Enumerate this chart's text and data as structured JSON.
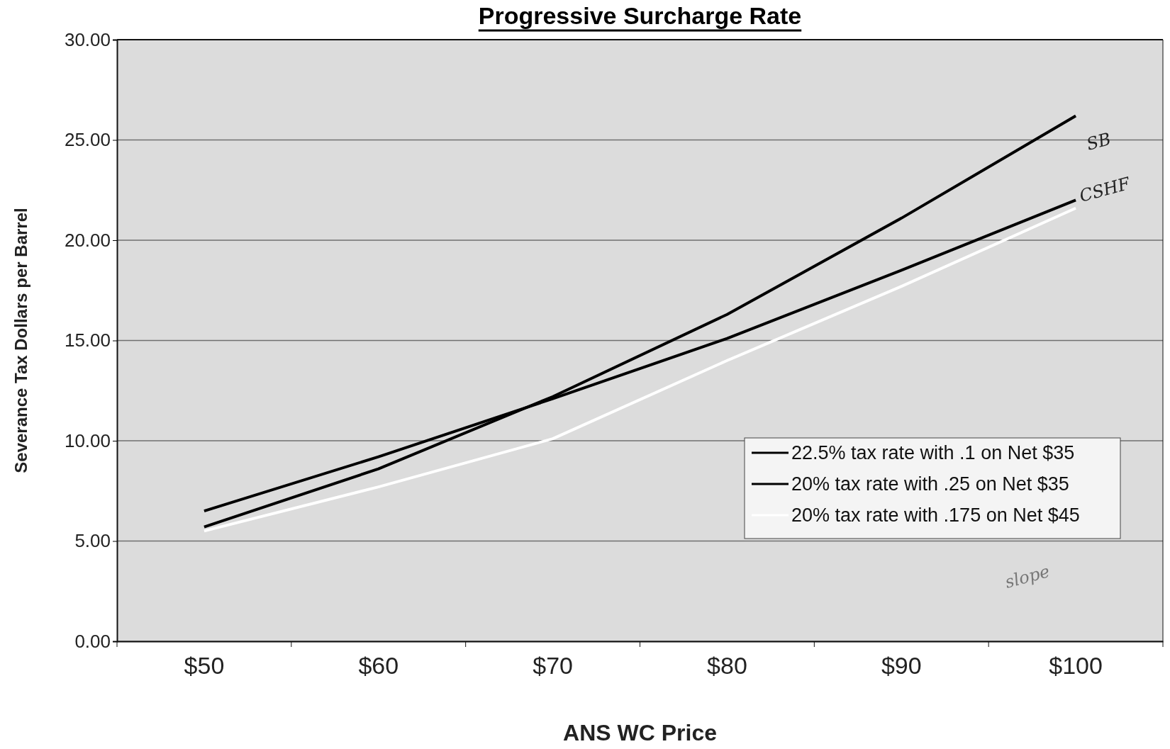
{
  "chart_data": {
    "type": "line",
    "title": "Progressive Surcharge Rate",
    "xlabel": "ANS WC Price",
    "ylabel": "Severance Tax Dollars per Barrel",
    "categories": [
      "$50",
      "$60",
      "$70",
      "$80",
      "$90",
      "$100"
    ],
    "series": [
      {
        "name": "22.5% tax rate with .1 on Net $35",
        "color": "#000000",
        "values": [
          5.7,
          8.6,
          12.2,
          16.3,
          21.1,
          26.2
        ]
      },
      {
        "name": "20% tax rate with .25 on Net $35",
        "color": "#000000",
        "values": [
          6.5,
          9.2,
          12.1,
          15.1,
          18.5,
          22.0
        ]
      },
      {
        "name": "20% tax rate with .175 on Net $45",
        "color": "#ffffff",
        "values": [
          5.5,
          7.7,
          10.1,
          14.0,
          17.7,
          21.6
        ]
      }
    ],
    "ylim": [
      0,
      30
    ],
    "yticks": [
      {
        "value": 0,
        "label": "0.00"
      },
      {
        "value": 5,
        "label": "5.00"
      },
      {
        "value": 10,
        "label": "10.00"
      },
      {
        "value": 15,
        "label": "15.00"
      },
      {
        "value": 20,
        "label": "20.00"
      },
      {
        "value": 25,
        "label": "25.00"
      },
      {
        "value": 30,
        "label": "30.00"
      }
    ],
    "grid": "y",
    "legend": "bottom right",
    "marker": "none",
    "line_style": "solid",
    "annotations": [
      "SB",
      "CSHF",
      "slope"
    ]
  }
}
